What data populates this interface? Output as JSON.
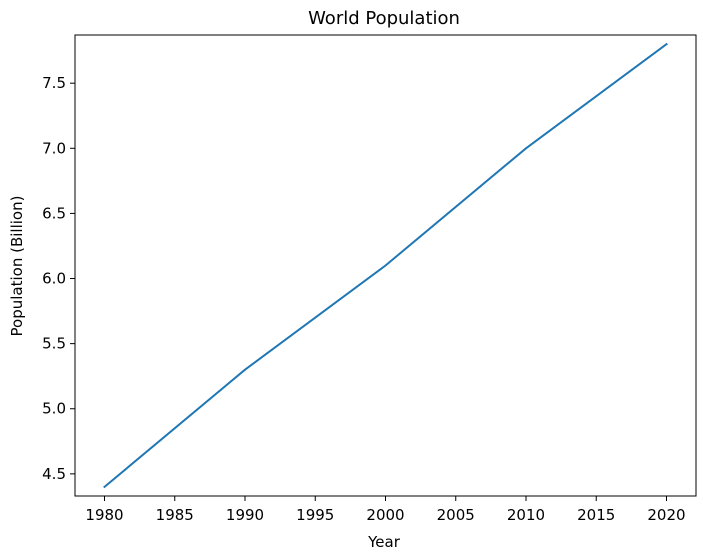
{
  "chart_data": {
    "type": "line",
    "title": "World Population",
    "xlabel": "Year",
    "ylabel": "Population (Billion)",
    "xlim": [
      1977.9,
      2022.1
    ],
    "ylim": [
      4.33,
      7.87
    ],
    "xticks": [
      1980,
      1985,
      1990,
      1995,
      2000,
      2005,
      2010,
      2015,
      2020
    ],
    "yticks": [
      4.5,
      5.0,
      5.5,
      6.0,
      6.5,
      7.0,
      7.5
    ],
    "grid": false,
    "legend": "none",
    "series": [
      {
        "color": "#1f77b4",
        "x": [
          1980,
          1990,
          2000,
          2010,
          2020
        ],
        "y": [
          4.4,
          5.3,
          6.1,
          7.0,
          7.8
        ]
      }
    ]
  }
}
